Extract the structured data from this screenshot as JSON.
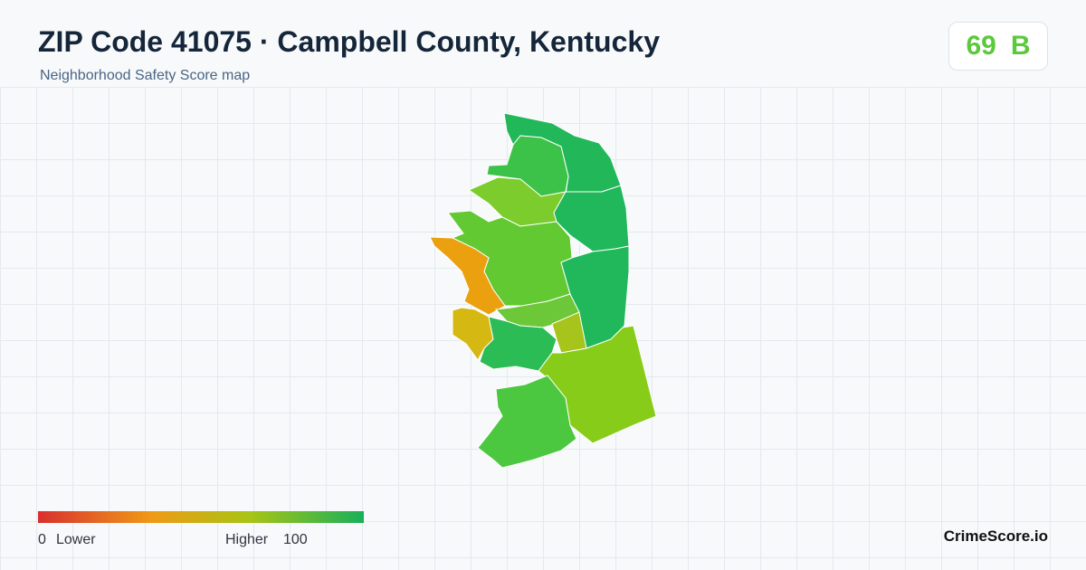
{
  "header": {
    "title": "ZIP Code 41075 · Campbell County, Kentucky",
    "subtitle": "Neighborhood Safety Score map"
  },
  "score": {
    "value": "69",
    "grade": "B"
  },
  "legend": {
    "min": "0",
    "min_label": "Lower",
    "max_label": "Higher",
    "max": "100"
  },
  "brand": "CrimeScore.io"
}
